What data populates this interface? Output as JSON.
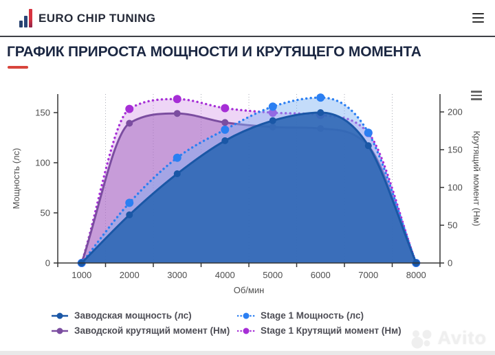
{
  "header": {
    "brand": "EURO CHIP TUNING",
    "logo_icon": "bar-chart-logo-icon",
    "menu_icon": "hamburger-icon"
  },
  "page": {
    "title": "ГРАФИК ПРИРОСТА МОЩНОСТИ И КРУТЯЩЕГО МОМЕНТА",
    "accent_color": "#d8453c",
    "title_color": "#1b2742"
  },
  "chart": {
    "menu_icon": "chart-context-menu-icon"
  },
  "chart_data": {
    "type": "area",
    "x": [
      1000,
      2000,
      3000,
      4000,
      5000,
      6000,
      7000,
      8000
    ],
    "xlabel": "Об/мин",
    "ylabel_left": "Мощность (лс)",
    "ylabel_right": "Крутящий момент (Нм)",
    "yleft_ticks": [
      0,
      50,
      100,
      150
    ],
    "yright_ticks": [
      0,
      50,
      100,
      150,
      200
    ],
    "yleft_range": [
      0,
      168
    ],
    "yright_range": [
      0,
      224
    ],
    "grid": "vertical-dotted-minor",
    "legend_position": "bottom",
    "series": [
      {
        "name": "Заводская мощность (лс)",
        "axis": "left",
        "style": "solid",
        "color": "#1a57a6",
        "fill": "rgba(43,102,180,0.88)",
        "values": [
          0,
          48,
          89,
          122,
          142,
          150,
          117,
          0
        ]
      },
      {
        "name": "Stage 1 Мощность (лс)",
        "axis": "left",
        "style": "dotted",
        "color": "#2b7ff2",
        "fill": "rgba(125,178,244,0.45)",
        "values": [
          0,
          60,
          105,
          133,
          156,
          165,
          130,
          0
        ]
      },
      {
        "name": "Заводской крутящий момент (Нм)",
        "axis": "right",
        "style": "solid",
        "color": "#7b4da0",
        "fill": "rgba(157,95,187,0.48)",
        "values": [
          0,
          185,
          198,
          186,
          180,
          178,
          155,
          0
        ]
      },
      {
        "name": "Stage 1 Крутящий момент (Нм)",
        "axis": "right",
        "style": "dotted",
        "color": "#a62ed6",
        "fill": "rgba(205,135,230,0.35)",
        "values": [
          0,
          204,
          217,
          205,
          199,
          196,
          172,
          0
        ]
      }
    ]
  },
  "watermark": {
    "text": "Avito",
    "logo_icon": "avito-circles-icon"
  }
}
